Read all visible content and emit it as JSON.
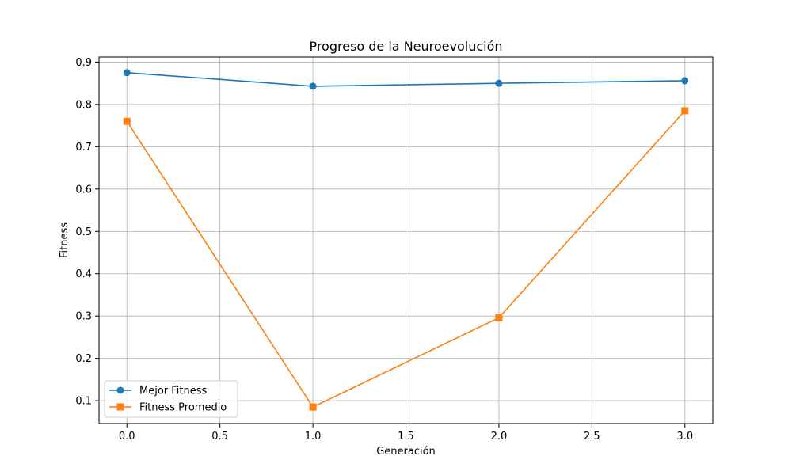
{
  "chart_data": {
    "type": "line",
    "title": "Progreso de la Neuroevolución",
    "xlabel": "Generación",
    "ylabel": "Fitness",
    "xlim": [
      -0.15,
      3.15
    ],
    "ylim": [
      0.046,
      0.912
    ],
    "x_ticks": [
      0.0,
      0.5,
      1.0,
      1.5,
      2.0,
      2.5,
      3.0
    ],
    "x_tick_labels": [
      "0.0",
      "0.5",
      "1.0",
      "1.5",
      "2.0",
      "2.5",
      "3.0"
    ],
    "y_ticks": [
      0.1,
      0.2,
      0.3,
      0.4,
      0.5,
      0.6,
      0.7,
      0.8,
      0.9
    ],
    "y_tick_labels": [
      "0.1",
      "0.2",
      "0.3",
      "0.4",
      "0.5",
      "0.6",
      "0.7",
      "0.8",
      "0.9"
    ],
    "grid": true,
    "legend_position": "lower-left",
    "x": [
      0,
      1,
      2,
      3
    ],
    "series": [
      {
        "name": "Mejor Fitness",
        "values": [
          0.875,
          0.843,
          0.85,
          0.856
        ],
        "color": "#1f77b4",
        "marker": "circle"
      },
      {
        "name": "Fitness Promedio",
        "values": [
          0.76,
          0.085,
          0.296,
          0.785
        ],
        "color": "#ff7f0e",
        "marker": "square"
      }
    ]
  }
}
